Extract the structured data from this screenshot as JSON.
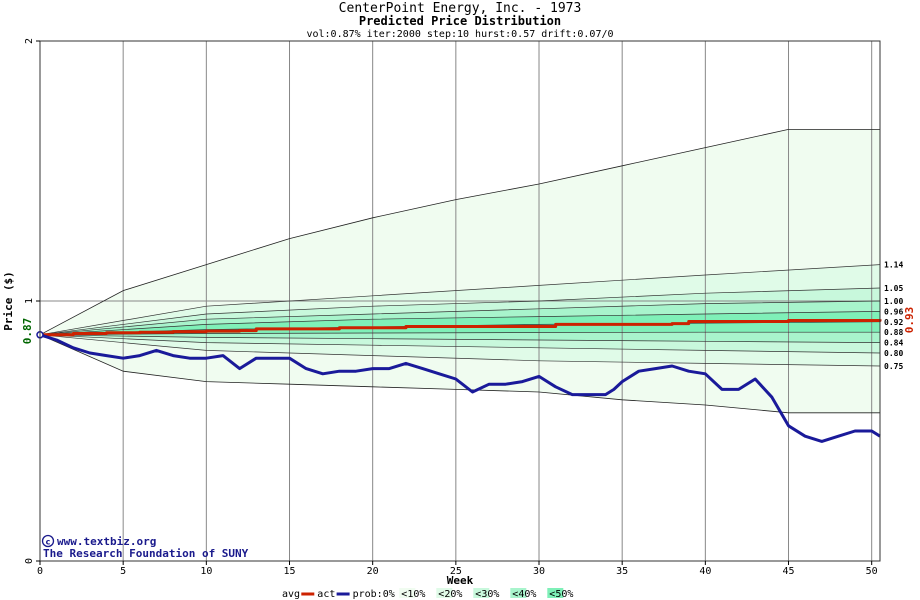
{
  "title": "CenterPoint Energy, Inc. - 1973",
  "subtitle": "Predicted Price Distribution",
  "params": "vol:0.87% iter:2000 step:10 hurst:0.57 drift:0.07/0",
  "credit_url": "www.textbiz.org",
  "credit_org": "The Research Foundation of SUNY",
  "start_label": "0.87",
  "end_label": "0.93",
  "colors": {
    "avg": "#cc2200",
    "act": "#1a1a9a",
    "band0": "#f0fcf0",
    "band10": "#e0fbe8",
    "band20": "#c8f8dc",
    "band30": "#a8f4cc",
    "band40": "#7ff0b8"
  },
  "legend": [
    {
      "label": "avg",
      "kind": "line",
      "color": "#cc2200"
    },
    {
      "label": "act",
      "kind": "line",
      "color": "#1a1a9a"
    },
    {
      "label": "prob:0%",
      "kind": "text"
    },
    {
      "label": "<10%",
      "kind": "swatch",
      "color": "#f0fcf0"
    },
    {
      "label": "<20%",
      "kind": "swatch",
      "color": "#e0fbe8"
    },
    {
      "label": "<30%",
      "kind": "swatch",
      "color": "#c8f8dc"
    },
    {
      "label": "<40%",
      "kind": "swatch",
      "color": "#a8f4cc"
    },
    {
      "label": "<50%",
      "kind": "swatch",
      "color": "#7ff0b8"
    }
  ],
  "chart_data": {
    "type": "area",
    "title": "CenterPoint Energy, Inc. - 1973",
    "subtitle": "Predicted Price Distribution",
    "xlabel": "Week",
    "ylabel": "Price ($)",
    "xlim": [
      0,
      50.5
    ],
    "ylim": [
      0,
      2
    ],
    "xticks": [
      0,
      5,
      10,
      15,
      20,
      25,
      30,
      35,
      40,
      45,
      50
    ],
    "yticks": [
      0,
      1,
      2
    ],
    "grid": true,
    "legend_position": "bottom",
    "start_value": 0.87,
    "percentile_end_labels": [
      "1.14",
      "1.05",
      "1.00",
      "0.96",
      "0.92",
      "0.88",
      "0.84",
      "0.80",
      "0.75"
    ],
    "envelope": {
      "x": [
        0,
        5,
        10,
        15,
        20,
        25,
        30,
        35,
        40,
        45,
        50
      ],
      "upper": [
        0.87,
        1.04,
        1.14,
        1.24,
        1.32,
        1.39,
        1.45,
        1.52,
        1.59,
        1.66,
        1.66
      ],
      "lower": [
        0.87,
        0.73,
        0.69,
        0.68,
        0.67,
        0.66,
        0.65,
        0.62,
        0.6,
        0.57,
        0.57
      ]
    },
    "percentile_lines": [
      {
        "x": [
          0,
          10,
          20,
          30,
          40,
          50.5
        ],
        "y": [
          0.87,
          0.98,
          1.02,
          1.06,
          1.1,
          1.14
        ]
      },
      {
        "x": [
          0,
          10,
          20,
          30,
          40,
          50.5
        ],
        "y": [
          0.87,
          0.95,
          0.98,
          1.0,
          1.03,
          1.05
        ]
      },
      {
        "x": [
          0,
          10,
          20,
          30,
          40,
          50.5
        ],
        "y": [
          0.87,
          0.93,
          0.95,
          0.97,
          0.99,
          1.0
        ]
      },
      {
        "x": [
          0,
          10,
          20,
          30,
          40,
          50.5
        ],
        "y": [
          0.87,
          0.91,
          0.93,
          0.94,
          0.95,
          0.96
        ]
      },
      {
        "x": [
          0,
          10,
          20,
          30,
          40,
          50.5
        ],
        "y": [
          0.87,
          0.89,
          0.9,
          0.91,
          0.915,
          0.92
        ]
      },
      {
        "x": [
          0,
          10,
          20,
          30,
          40,
          50.5
        ],
        "y": [
          0.87,
          0.875,
          0.877,
          0.879,
          0.88,
          0.88
        ]
      },
      {
        "x": [
          0,
          10,
          20,
          30,
          40,
          50.5
        ],
        "y": [
          0.87,
          0.86,
          0.855,
          0.85,
          0.845,
          0.84
        ]
      },
      {
        "x": [
          0,
          10,
          20,
          30,
          40,
          50.5
        ],
        "y": [
          0.87,
          0.84,
          0.83,
          0.82,
          0.81,
          0.8
        ]
      },
      {
        "x": [
          0,
          10,
          20,
          30,
          40,
          50.5
        ],
        "y": [
          0.87,
          0.81,
          0.79,
          0.77,
          0.76,
          0.75
        ]
      }
    ],
    "series": [
      {
        "name": "avg",
        "x": [
          0,
          2,
          4,
          6,
          8,
          10,
          12,
          13,
          18,
          22,
          28,
          31,
          38,
          39,
          45,
          50.5
        ],
        "y": [
          0.87,
          0.875,
          0.878,
          0.88,
          0.882,
          0.884,
          0.886,
          0.893,
          0.897,
          0.902,
          0.902,
          0.91,
          0.913,
          0.921,
          0.925,
          0.93
        ]
      },
      {
        "name": "act",
        "x": [
          0,
          1,
          2,
          3,
          4,
          5,
          6,
          7,
          8,
          9,
          10,
          11,
          12,
          13,
          14,
          15,
          16,
          17,
          18,
          19,
          20,
          21,
          22,
          23,
          24,
          25,
          26,
          27,
          28,
          29,
          30,
          31,
          32,
          33,
          34,
          34.5,
          35,
          36,
          37,
          38,
          39,
          40,
          41,
          42,
          43,
          44,
          45,
          46,
          47,
          48,
          49,
          50,
          50.5
        ],
        "y": [
          0.87,
          0.85,
          0.82,
          0.8,
          0.79,
          0.78,
          0.79,
          0.81,
          0.79,
          0.78,
          0.78,
          0.79,
          0.74,
          0.78,
          0.78,
          0.78,
          0.74,
          0.72,
          0.73,
          0.73,
          0.74,
          0.74,
          0.76,
          0.74,
          0.72,
          0.7,
          0.65,
          0.68,
          0.68,
          0.69,
          0.71,
          0.67,
          0.64,
          0.64,
          0.64,
          0.66,
          0.69,
          0.73,
          0.74,
          0.75,
          0.73,
          0.72,
          0.66,
          0.66,
          0.7,
          0.63,
          0.52,
          0.48,
          0.46,
          0.48,
          0.5,
          0.5,
          0.48
        ]
      }
    ]
  }
}
